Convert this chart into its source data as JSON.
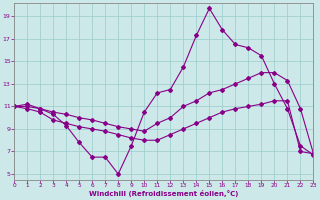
{
  "xlabel": "Windchill (Refroidissement éolien,°C)",
  "line_color": "#880088",
  "bg_color": "#cce8e8",
  "grid_color": "#99cccc",
  "xlim_min": 0,
  "xlim_max": 23,
  "ylim_min": 4.5,
  "ylim_max": 20.2,
  "xticks": [
    0,
    1,
    2,
    3,
    4,
    5,
    6,
    7,
    8,
    9,
    10,
    11,
    12,
    13,
    14,
    15,
    16,
    17,
    18,
    19,
    20,
    21,
    22,
    23
  ],
  "yticks": [
    5,
    7,
    9,
    11,
    13,
    15,
    17,
    19
  ],
  "line1_x": [
    0,
    1,
    2,
    3,
    4,
    5,
    6,
    7,
    8,
    9,
    10,
    11,
    12,
    13,
    14,
    15,
    16,
    17,
    18,
    19,
    20,
    21,
    22,
    23
  ],
  "line1_y": [
    11.0,
    11.2,
    10.8,
    10.3,
    9.3,
    7.8,
    6.5,
    6.5,
    5.0,
    7.5,
    10.5,
    12.2,
    12.5,
    14.5,
    17.3,
    19.7,
    17.8,
    16.5,
    16.2,
    15.5,
    13.0,
    10.8,
    7.5,
    6.7
  ],
  "line2_x": [
    0,
    1,
    2,
    3,
    4,
    5,
    6,
    7,
    8,
    9,
    10,
    11,
    12,
    13,
    14,
    15,
    16,
    17,
    18,
    19,
    20,
    21,
    22,
    23
  ],
  "line2_y": [
    11.0,
    10.8,
    10.5,
    9.8,
    9.5,
    9.2,
    9.0,
    8.8,
    8.5,
    8.2,
    8.0,
    8.0,
    8.5,
    9.0,
    9.5,
    10.0,
    10.5,
    10.8,
    11.0,
    11.2,
    11.5,
    11.5,
    7.0,
    6.8
  ],
  "line3_x": [
    0,
    1,
    2,
    3,
    4,
    5,
    6,
    7,
    8,
    9,
    10,
    11,
    12,
    13,
    14,
    15,
    16,
    17,
    18,
    19,
    20,
    21,
    22,
    23
  ],
  "line3_y": [
    11.0,
    11.0,
    10.8,
    10.5,
    10.3,
    10.0,
    9.8,
    9.5,
    9.2,
    9.0,
    8.8,
    9.5,
    10.0,
    11.0,
    11.5,
    12.2,
    12.5,
    13.0,
    13.5,
    14.0,
    14.0,
    13.3,
    10.8,
    6.8
  ]
}
